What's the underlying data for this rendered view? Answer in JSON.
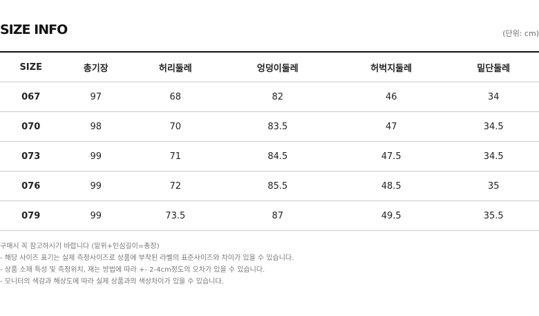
{
  "title": "SIZE INFO",
  "unit": "(단위: cm)",
  "headers": [
    "SIZE",
    "총기장",
    "허리둘레",
    "엉덩이둘레",
    "허벅지둘레",
    "밑단둘레"
  ],
  "rows": [
    [
      "067",
      "97",
      "68",
      "82",
      "46",
      "34"
    ],
    [
      "070",
      "98",
      "70",
      "83.5",
      "47",
      "34.5"
    ],
    [
      "073",
      "99",
      "71",
      "84.5",
      "47.5",
      "34.5"
    ],
    [
      "076",
      "99",
      "72",
      "85.5",
      "48.5",
      "35"
    ],
    [
      "079",
      "99",
      "73.5",
      "87",
      "49.5",
      "35.5"
    ]
  ],
  "notes": [
    "구매시 꼭 참고하시기 바랍니다 (밑위+인심길이=총장)",
    "- 해당 사이즈 표기는 실제 측정사이즈로 상품에 부착된 라벨의 표준사이즈와 차이가 있을 수 있습니다.",
    "- 상품 소재 특성 및 측정위치, 재는 방법에 따라 +- 2-4cm정도의 오차가 있을 수 있습니다.",
    "- 모니터의 색감과 해상도에 따라 실제 상품과의 색상차이가 있을 수 있습니다."
  ]
}
